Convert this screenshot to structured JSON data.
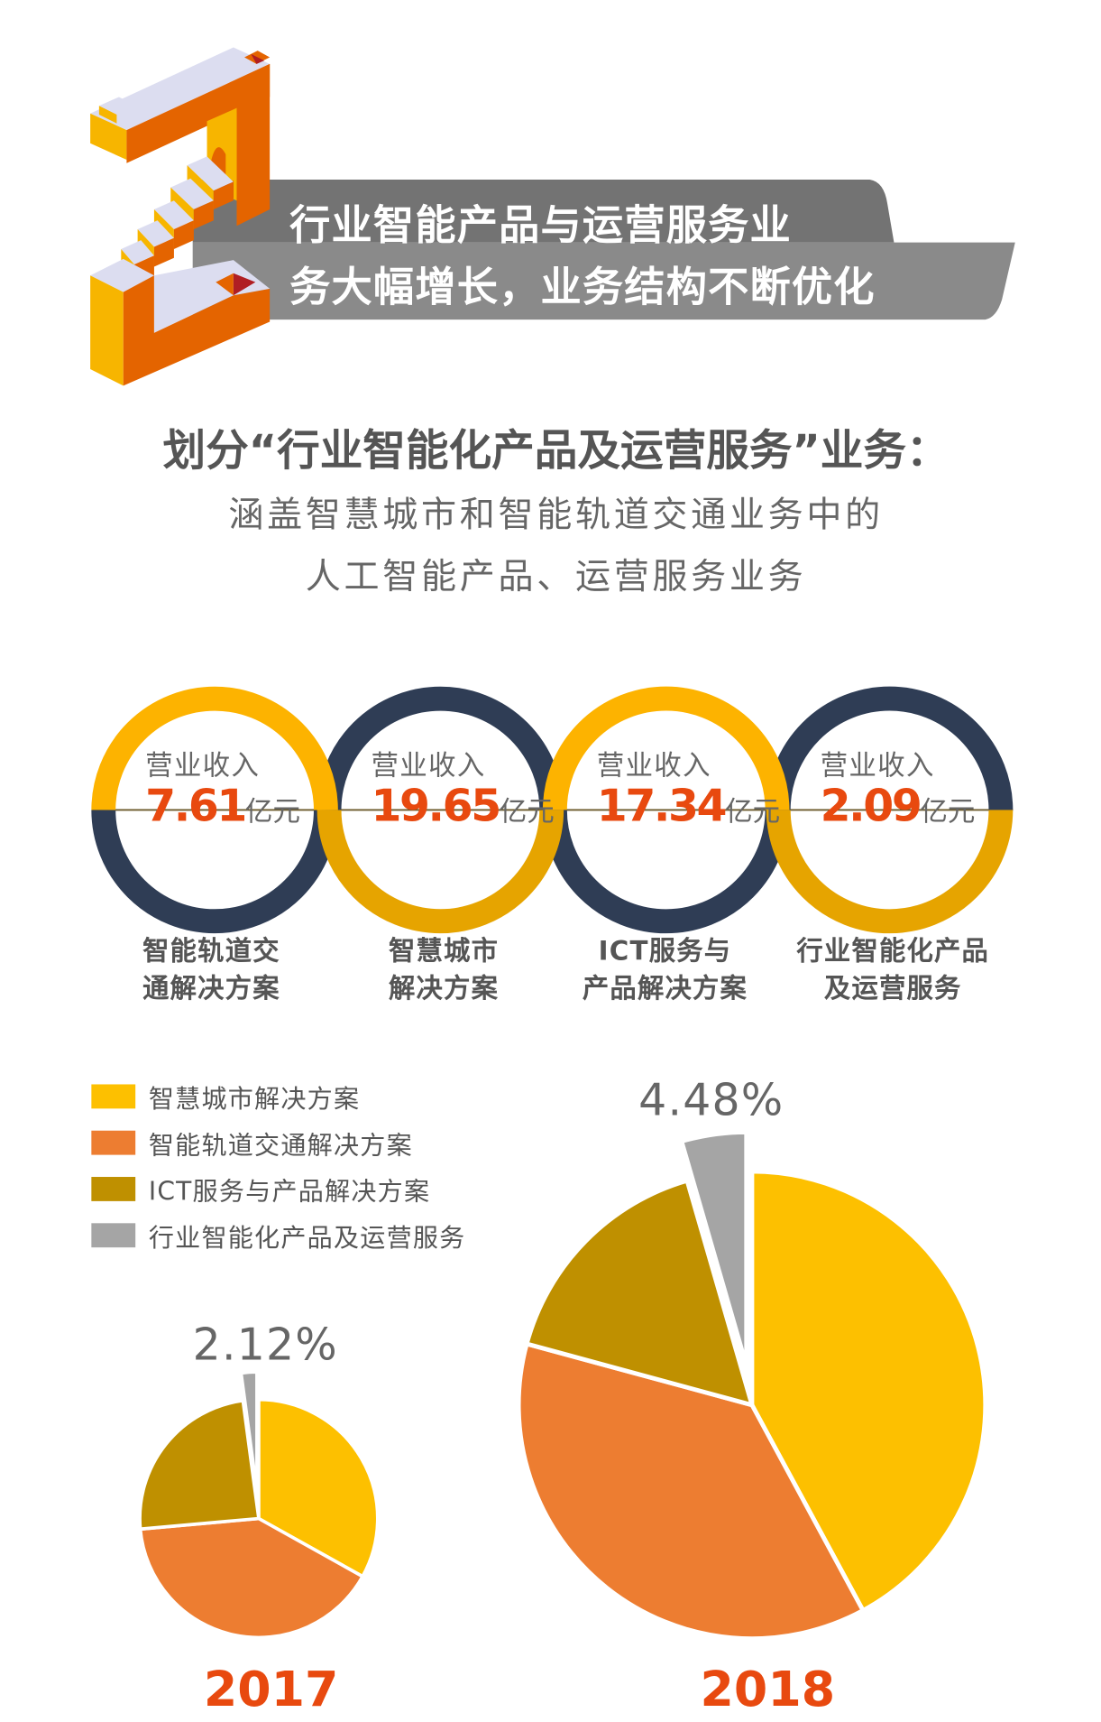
{
  "banner": {
    "line1": "行业智能产品与运营服务业",
    "line2": "务大幅增长，业务结构不断优化"
  },
  "headline": "划分“行业智能化产品及运营服务”业务：",
  "subtitle": {
    "line1": "涵盖智慧城市和智能轨道交通业务中的",
    "line2": "人工智能产品、运营服务业务"
  },
  "rings": [
    {
      "label": "营业收入",
      "value": "7.61",
      "unit": "亿元",
      "caption1": "智能轨道交",
      "caption2": "通解决方案",
      "top_color": "#FDB300",
      "bottom_color": "#2F3D55"
    },
    {
      "label": "营业收入",
      "value": "19.65",
      "unit": "亿元",
      "caption1": "智慧城市",
      "caption2": "解决方案",
      "top_color": "#2F3D55",
      "bottom_color": "#E6A400"
    },
    {
      "label": "营业收入",
      "value": "17.34",
      "unit": "亿元",
      "caption1": "ICT服务与",
      "caption2": "产品解决方案",
      "top_color": "#FDB300",
      "bottom_color": "#2F3D55"
    },
    {
      "label": "营业收入",
      "value": "2.09",
      "unit": "亿元",
      "caption1": "行业智能化产品",
      "caption2": "及运营服务",
      "top_color": "#2F3D55",
      "bottom_color": "#E6A400"
    }
  ],
  "chart_data": [
    {
      "type": "pie",
      "title": "2017",
      "legend": [
        "智慧城市解决方案",
        "智能轨道交通解决方案",
        "ICT服务与产品解决方案",
        "行业智能化产品及运营服务"
      ],
      "colors": [
        "#FDC000",
        "#ED7D31",
        "#BF9000",
        "#A5A5A5"
      ],
      "values": [
        33.1,
        40.5,
        24.3,
        2.12
      ],
      "annotation": "2.12%",
      "exploded": [
        false,
        false,
        false,
        true
      ]
    },
    {
      "type": "pie",
      "title": "2018",
      "legend": [
        "智慧城市解决方案",
        "智能轨道交通解决方案",
        "ICT服务与产品解决方案",
        "行业智能化产品及运营服务"
      ],
      "colors": [
        "#FDC000",
        "#ED7D31",
        "#BF9000",
        "#A5A5A5"
      ],
      "values": [
        42.1,
        37.1,
        16.3,
        4.48
      ],
      "annotation": "4.48%",
      "exploded": [
        false,
        false,
        false,
        true
      ]
    }
  ],
  "legend_placement": "top-left"
}
